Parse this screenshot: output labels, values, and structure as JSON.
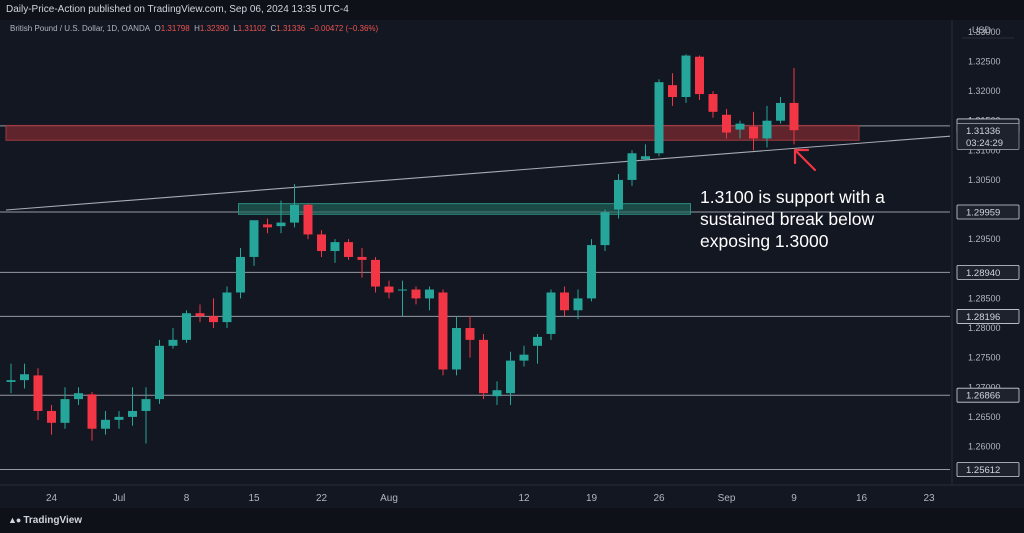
{
  "header": {
    "published": "Daily-Price-Action published on TradingView.com, Sep 06, 2024 13:35 UTC-4"
  },
  "symbol": {
    "name": "British Pound / U.S. Dollar, 1D, OANDA",
    "o_label": "O",
    "o": "1.31798",
    "h_label": "H",
    "h": "1.32390",
    "l_label": "L",
    "l": "1.31102",
    "c_label": "C",
    "c": "1.31336",
    "change": "−0.00472 (−0.36%)"
  },
  "footer": {
    "logo": "TradingView"
  },
  "colors": {
    "background": "#131722",
    "up": "#26a69a",
    "down": "#f23645",
    "resistance_zone": "#7a2a30",
    "support_zone": "#1f6b5f",
    "level_line": "#9598a1",
    "arrow": "#f23645"
  },
  "chart_data": {
    "type": "candlestick",
    "currency": "USD",
    "ylim": [
      1.2535,
      1.332
    ],
    "y_ticks": [
      "1.33000",
      "1.32500",
      "1.32000",
      "1.31500",
      "1.31000",
      "1.30500",
      "1.30000",
      "1.29500",
      "1.29000",
      "1.28500",
      "1.28000",
      "1.27500",
      "1.27000",
      "1.26500",
      "1.26000"
    ],
    "x_ticks": [
      {
        "label": "24",
        "index": 3
      },
      {
        "label": "Jul",
        "index": 8
      },
      {
        "label": "8",
        "index": 13
      },
      {
        "label": "15",
        "index": 18
      },
      {
        "label": "22",
        "index": 23
      },
      {
        "label": "Aug",
        "index": 28
      },
      {
        "label": "12",
        "index": 38
      },
      {
        "label": "19",
        "index": 43
      },
      {
        "label": "26",
        "index": 48
      },
      {
        "label": "Sep",
        "index": 53
      },
      {
        "label": "9",
        "index": 58
      },
      {
        "label": "16",
        "index": 63
      },
      {
        "label": "23",
        "index": 68
      }
    ],
    "candles": [
      [
        1.2709,
        1.274,
        1.269,
        1.2712
      ],
      [
        1.2712,
        1.274,
        1.2698,
        1.2722
      ],
      [
        1.272,
        1.2732,
        1.2645,
        1.266
      ],
      [
        1.266,
        1.267,
        1.262,
        1.264
      ],
      [
        1.264,
        1.27,
        1.263,
        1.268
      ],
      [
        1.268,
        1.27,
        1.267,
        1.269
      ],
      [
        1.2688,
        1.2692,
        1.261,
        1.263
      ],
      [
        1.263,
        1.266,
        1.262,
        1.2645
      ],
      [
        1.2645,
        1.266,
        1.263,
        1.265
      ],
      [
        1.265,
        1.27,
        1.2635,
        1.266
      ],
      [
        1.266,
        1.27,
        1.2605,
        1.268
      ],
      [
        1.268,
        1.278,
        1.2672,
        1.277
      ],
      [
        1.277,
        1.28,
        1.2765,
        1.278
      ],
      [
        1.278,
        1.283,
        1.2775,
        1.2825
      ],
      [
        1.2825,
        1.284,
        1.281,
        1.282
      ],
      [
        1.282,
        1.285,
        1.28,
        1.281
      ],
      [
        1.281,
        1.287,
        1.28,
        1.286
      ],
      [
        1.286,
        1.2935,
        1.285,
        1.292
      ],
      [
        1.292,
        1.2975,
        1.2905,
        1.2982
      ],
      [
        1.2975,
        1.2985,
        1.296,
        1.297
      ],
      [
        1.2972,
        1.3015,
        1.296,
        1.2978
      ],
      [
        1.2978,
        1.3043,
        1.297,
        1.3008
      ],
      [
        1.3008,
        1.301,
        1.295,
        1.2958
      ],
      [
        1.2958,
        1.2965,
        1.292,
        1.293
      ],
      [
        1.293,
        1.295,
        1.291,
        1.2945
      ],
      [
        1.2945,
        1.295,
        1.2915,
        1.292
      ],
      [
        1.292,
        1.2935,
        1.2885,
        1.2915
      ],
      [
        1.2915,
        1.292,
        1.286,
        1.287
      ],
      [
        1.287,
        1.288,
        1.285,
        1.286
      ],
      [
        1.2865,
        1.288,
        1.282,
        1.2865
      ],
      [
        1.2865,
        1.287,
        1.284,
        1.285
      ],
      [
        1.285,
        1.287,
        1.283,
        1.2865
      ],
      [
        1.286,
        1.2865,
        1.272,
        1.273
      ],
      [
        1.273,
        1.282,
        1.272,
        1.28
      ],
      [
        1.28,
        1.282,
        1.275,
        1.278
      ],
      [
        1.278,
        1.279,
        1.268,
        1.269
      ],
      [
        1.2685,
        1.271,
        1.267,
        1.2695
      ],
      [
        1.269,
        1.276,
        1.267,
        1.2745
      ],
      [
        1.2745,
        1.277,
        1.2735,
        1.2755
      ],
      [
        1.277,
        1.279,
        1.274,
        1.2785
      ],
      [
        1.279,
        1.2865,
        1.278,
        1.286
      ],
      [
        1.286,
        1.287,
        1.282,
        1.283
      ],
      [
        1.283,
        1.2865,
        1.2815,
        1.285
      ],
      [
        1.285,
        1.295,
        1.2845,
        1.294
      ],
      [
        1.294,
        1.3,
        1.293,
        1.2995
      ],
      [
        1.3,
        1.306,
        1.2985,
        1.305
      ],
      [
        1.305,
        1.31,
        1.304,
        1.3095
      ],
      [
        1.3085,
        1.311,
        1.3085,
        1.309
      ],
      [
        1.3095,
        1.322,
        1.309,
        1.3215
      ],
      [
        1.321,
        1.323,
        1.3175,
        1.319
      ],
      [
        1.319,
        1.3262,
        1.318,
        1.326
      ],
      [
        1.3258,
        1.326,
        1.3185,
        1.3195
      ],
      [
        1.3195,
        1.32,
        1.3155,
        1.3165
      ],
      [
        1.316,
        1.317,
        1.312,
        1.313
      ],
      [
        1.3135,
        1.315,
        1.312,
        1.3145
      ],
      [
        1.314,
        1.3165,
        1.31,
        1.312
      ],
      [
        1.312,
        1.3175,
        1.3105,
        1.315
      ],
      [
        1.315,
        1.319,
        1.3145,
        1.318
      ],
      [
        1.318,
        1.3239,
        1.311,
        1.3134
      ]
    ],
    "levels": [
      {
        "price": 1.31412,
        "label": "1.31412"
      },
      {
        "price": 1.29959,
        "label": "1.29959"
      },
      {
        "price": 1.2894,
        "label": "1.28940"
      },
      {
        "price": 1.28196,
        "label": "1.28196"
      },
      {
        "price": 1.26866,
        "label": "1.26866"
      },
      {
        "price": 1.25612,
        "label": "1.25612"
      }
    ],
    "current_price": {
      "price": 1.31336,
      "label": "1.31336",
      "countdown": "03:24:29"
    },
    "resistance_zone": {
      "from_index": 0,
      "to_index": 62,
      "low": 1.3117,
      "high": 1.3142
    },
    "support_zone": {
      "from_index": 17,
      "to_index": 49,
      "low": 1.2992,
      "high": 1.301
    },
    "trendline": {
      "start_index": 0,
      "start_price": 1.301,
      "end_index": 70,
      "end_price": 1.3128
    },
    "annotation": {
      "lines": [
        "1.3100 is support with a",
        "sustained break below",
        "exposing 1.3000"
      ]
    }
  }
}
